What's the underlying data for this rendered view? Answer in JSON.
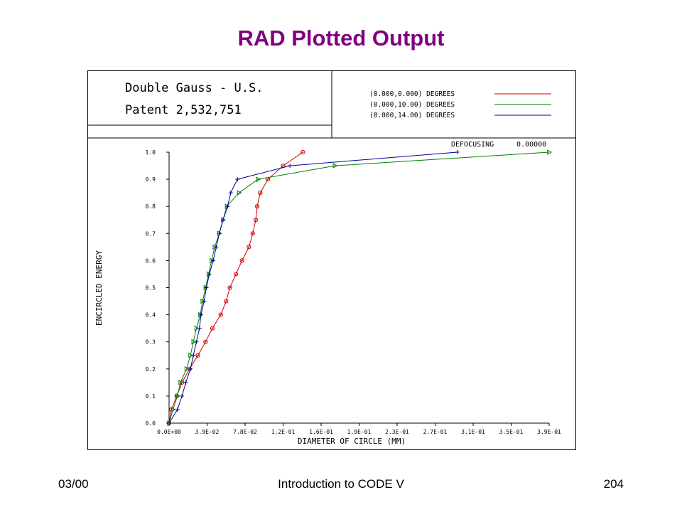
{
  "slide": {
    "title": "RAD Plotted Output",
    "footer_left": "03/00",
    "footer_center": "Introduction to CODE V",
    "footer_right": "204",
    "title_color": "#800080"
  },
  "plot_header": {
    "line1": "Double Gauss - U.S.",
    "line2": "Patent 2,532,751",
    "defocus_label": "DEFOCUSING",
    "defocus_value": "0.00000"
  },
  "chart_data": {
    "type": "line",
    "title": "",
    "xlabel": "DIAMETER OF CIRCLE (MM)",
    "ylabel": "ENCIRCLED ENERGY",
    "xlim": [
      0,
      0.3876
    ],
    "ylim": [
      0,
      1.0
    ],
    "x_tick_labels": [
      "0.0E+00",
      "3.9E-02",
      "7.8E-02",
      "1.2E-01",
      "1.6E-01",
      "1.9E-01",
      "2.3E-01",
      "2.7E-01",
      "3.1E-01",
      "3.5E-01",
      "3.9E-01"
    ],
    "y_tick_labels": [
      "0.0",
      "0.1",
      "0.2",
      "0.3",
      "0.4",
      "0.5",
      "0.6",
      "0.7",
      "0.8",
      "0.9",
      "1.0"
    ],
    "grid": false,
    "legend_position": "top-right",
    "series": [
      {
        "name": "(0.000,0.000) DEGREES",
        "color": "#cc0000",
        "marker": "circle",
        "points": [
          [
            0.0,
            0.0
          ],
          [
            0.0023,
            0.05
          ],
          [
            0.0078,
            0.1
          ],
          [
            0.0132,
            0.15
          ],
          [
            0.0209,
            0.2
          ],
          [
            0.0294,
            0.25
          ],
          [
            0.0372,
            0.3
          ],
          [
            0.0442,
            0.35
          ],
          [
            0.0527,
            0.4
          ],
          [
            0.0582,
            0.45
          ],
          [
            0.062,
            0.5
          ],
          [
            0.0682,
            0.55
          ],
          [
            0.0744,
            0.6
          ],
          [
            0.0814,
            0.65
          ],
          [
            0.0853,
            0.7
          ],
          [
            0.0884,
            0.75
          ],
          [
            0.0899,
            0.8
          ],
          [
            0.093,
            0.85
          ],
          [
            0.1008,
            0.9
          ],
          [
            0.1163,
            0.95
          ],
          [
            0.1364,
            1.0
          ]
        ]
      },
      {
        "name": "(0.000,10.00) DEGREES",
        "color": "#008000",
        "marker": "triangle",
        "points": [
          [
            0.0,
            0.0
          ],
          [
            0.0039,
            0.05
          ],
          [
            0.0085,
            0.1
          ],
          [
            0.0116,
            0.15
          ],
          [
            0.0178,
            0.2
          ],
          [
            0.0217,
            0.25
          ],
          [
            0.0248,
            0.3
          ],
          [
            0.0279,
            0.35
          ],
          [
            0.0318,
            0.4
          ],
          [
            0.0341,
            0.45
          ],
          [
            0.0372,
            0.5
          ],
          [
            0.0403,
            0.55
          ],
          [
            0.0434,
            0.6
          ],
          [
            0.0465,
            0.65
          ],
          [
            0.0512,
            0.7
          ],
          [
            0.055,
            0.75
          ],
          [
            0.0589,
            0.8
          ],
          [
            0.0713,
            0.85
          ],
          [
            0.0907,
            0.9
          ],
          [
            0.169,
            0.95
          ],
          [
            0.3876,
            1.0
          ]
        ]
      },
      {
        "name": "(0.000,14.00) DEGREES",
        "color": "#000099",
        "marker": "plus",
        "points": [
          [
            0.0,
            0.0
          ],
          [
            0.0085,
            0.05
          ],
          [
            0.0132,
            0.1
          ],
          [
            0.0171,
            0.15
          ],
          [
            0.0217,
            0.2
          ],
          [
            0.0248,
            0.25
          ],
          [
            0.0279,
            0.3
          ],
          [
            0.031,
            0.35
          ],
          [
            0.0325,
            0.4
          ],
          [
            0.0357,
            0.45
          ],
          [
            0.038,
            0.5
          ],
          [
            0.0411,
            0.55
          ],
          [
            0.045,
            0.6
          ],
          [
            0.0481,
            0.65
          ],
          [
            0.0512,
            0.7
          ],
          [
            0.055,
            0.75
          ],
          [
            0.0597,
            0.8
          ],
          [
            0.0628,
            0.85
          ],
          [
            0.0698,
            0.9
          ],
          [
            0.1233,
            0.95
          ],
          [
            0.2938,
            1.0
          ]
        ]
      }
    ]
  }
}
